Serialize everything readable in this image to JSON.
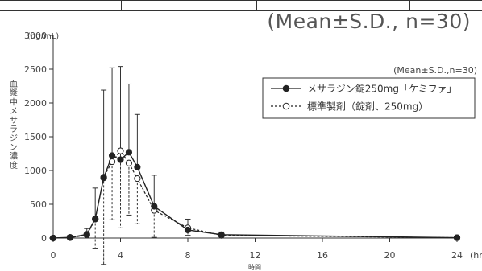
{
  "header_note": "(Mean±S.D., n=30)",
  "chart_data": {
    "type": "line",
    "title": "",
    "unit_label": "(ng/mL)",
    "ylabel": "血漿中メサラジン濃度",
    "xlabel": "時間",
    "x_unit": "(hr)",
    "xlim": [
      0,
      24
    ],
    "ylim": [
      0,
      3000
    ],
    "x_ticks": [
      0,
      4,
      8,
      12,
      16,
      20,
      24
    ],
    "y_ticks": [
      0,
      500,
      1000,
      1500,
      2000,
      2500,
      3000
    ],
    "grid": false,
    "legend_position": "top-right",
    "legend_note": "(Mean±S.D.,n=30)",
    "series": [
      {
        "name": "メサラジン錠250mg「ケミファ」",
        "marker": "filled-circle",
        "line_style": "solid",
        "color": "#222222",
        "x": [
          0,
          1,
          2,
          2.5,
          3,
          3.5,
          4,
          4.5,
          5,
          6,
          8,
          10,
          24
        ],
        "y": [
          0,
          10,
          55,
          285,
          890,
          1220,
          1160,
          1270,
          1050,
          470,
          120,
          50,
          5
        ],
        "sd_upper": [
          0,
          40,
          140,
          740,
          2190,
          2520,
          2540,
          2280,
          1830,
          930,
          280,
          90,
          20
        ]
      },
      {
        "name": "標準製剤（錠剤、250mg）",
        "marker": "open-circle",
        "line_style": "dashed",
        "color": "#222222",
        "x": [
          0,
          1,
          2,
          2.5,
          3,
          3.5,
          4,
          4.5,
          5,
          6,
          8,
          10,
          24
        ],
        "y": [
          0,
          5,
          45,
          280,
          900,
          1130,
          1290,
          1110,
          880,
          410,
          150,
          40,
          5
        ],
        "sd_lower": [
          0,
          0,
          0,
          -160,
          -390,
          270,
          150,
          340,
          210,
          10,
          40,
          20,
          0
        ]
      }
    ]
  }
}
